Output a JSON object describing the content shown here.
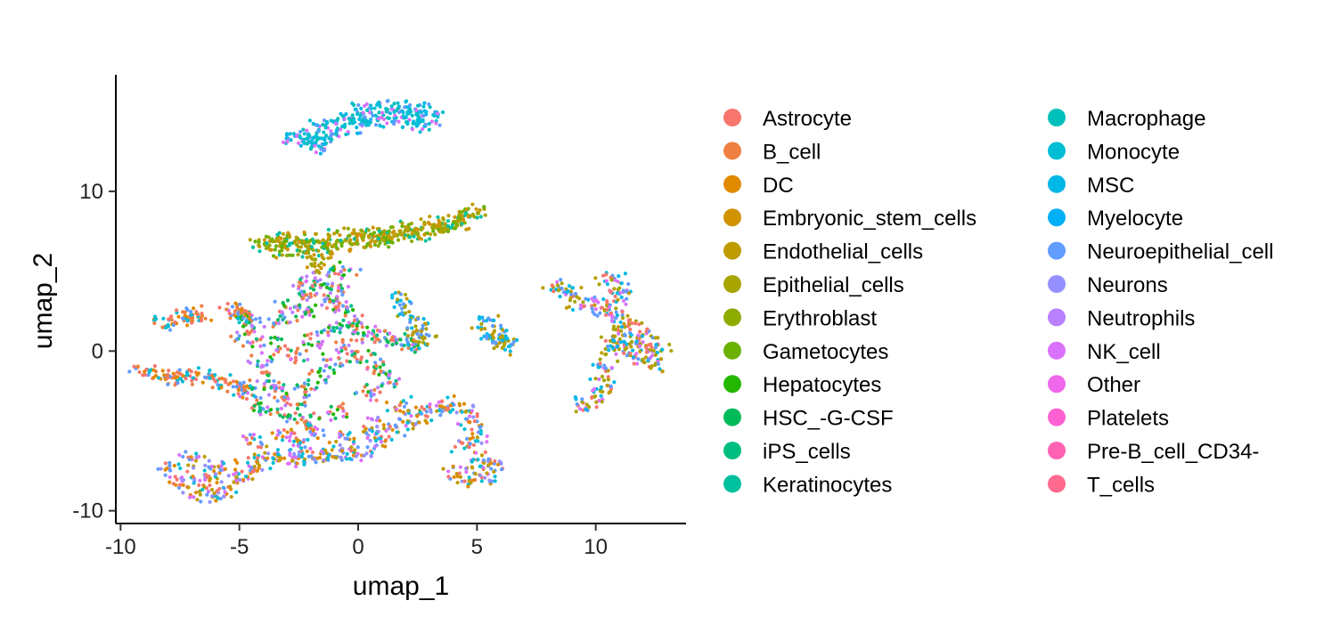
{
  "chart_data": {
    "type": "scatter",
    "title": "",
    "xlabel": "umap_1",
    "ylabel": "umap_2",
    "xlim": [
      -10.2,
      13.8
    ],
    "ylim": [
      -10.8,
      17.3
    ],
    "x_ticks": [
      {
        "value": -10,
        "label": "-10"
      },
      {
        "value": -5,
        "label": "-5"
      },
      {
        "value": 0,
        "label": "0"
      },
      {
        "value": 5,
        "label": "5"
      },
      {
        "value": 10,
        "label": "10"
      }
    ],
    "y_ticks": [
      {
        "value": -10,
        "label": "-10"
      },
      {
        "value": 0,
        "label": "0"
      },
      {
        "value": 10,
        "label": "10"
      }
    ],
    "grid": false,
    "legend": {
      "placement": "right",
      "columns": 2,
      "entries": [
        {
          "name": "Astrocyte",
          "color": "#F8766D"
        },
        {
          "name": "B_cell",
          "color": "#EE8043"
        },
        {
          "name": "DC",
          "color": "#E18A00"
        },
        {
          "name": "Embryonic_stem_cells",
          "color": "#D19300"
        },
        {
          "name": "Endothelial_cells",
          "color": "#BE9C00"
        },
        {
          "name": "Epithelial_cells",
          "color": "#A8A400"
        },
        {
          "name": "Erythroblast",
          "color": "#8EAB00"
        },
        {
          "name": "Gametocytes",
          "color": "#6BB100"
        },
        {
          "name": "Hepatocytes",
          "color": "#24B700"
        },
        {
          "name": "HSC_-G-CSF",
          "color": "#00BA5A"
        },
        {
          "name": "iPS_cells",
          "color": "#00BE81"
        },
        {
          "name": "Keratinocytes",
          "color": "#00C0A0"
        },
        {
          "name": "Macrophage",
          "color": "#00C0BB"
        },
        {
          "name": "Monocyte",
          "color": "#00BED4"
        },
        {
          "name": "MSC",
          "color": "#00B8E7"
        },
        {
          "name": "Myelocyte",
          "color": "#00AFF6"
        },
        {
          "name": "Neuroepithelial_cell",
          "color": "#619CFF"
        },
        {
          "name": "Neurons",
          "color": "#9590FF"
        },
        {
          "name": "Neutrophils",
          "color": "#BA80FF"
        },
        {
          "name": "NK_cell",
          "color": "#DB72FB"
        },
        {
          "name": "Other",
          "color": "#EF67EB"
        },
        {
          "name": "Platelets",
          "color": "#FD61D1"
        },
        {
          "name": "Pre-B_cell_CD34-",
          "color": "#FF62B2"
        },
        {
          "name": "T_cells",
          "color": "#FF6A8F"
        }
      ]
    },
    "clusters": [
      {
        "region": "top-arc",
        "points": [
          [
            -2.8,
            13.3
          ],
          [
            -2.2,
            13.6
          ],
          [
            -1.5,
            14.0
          ],
          [
            -0.8,
            14.4
          ],
          [
            -0.2,
            14.8
          ],
          [
            0.4,
            15.1
          ],
          [
            1.0,
            15.3
          ],
          [
            1.6,
            15.3
          ],
          [
            2.2,
            15.2
          ],
          [
            2.8,
            15.0
          ],
          [
            3.1,
            14.6
          ],
          [
            2.6,
            14.3
          ],
          [
            2.0,
            14.2
          ],
          [
            1.4,
            14.4
          ],
          [
            0.7,
            14.5
          ],
          [
            0.0,
            14.2
          ],
          [
            -0.7,
            13.9
          ],
          [
            -1.4,
            13.5
          ],
          [
            -2.0,
            13.1
          ],
          [
            -1.8,
            12.8
          ]
        ],
        "colors": [
          "#00BED4",
          "#00C0BB",
          "#DB72FB",
          "#00B8E7",
          "#00BED4",
          "#619CFF"
        ]
      },
      {
        "region": "upper-band",
        "points": [
          [
            -4.0,
            6.5
          ],
          [
            -3.5,
            6.8
          ],
          [
            -3.0,
            7.0
          ],
          [
            -2.5,
            6.6
          ],
          [
            -2.0,
            7.0
          ],
          [
            -1.5,
            6.6
          ],
          [
            -1.0,
            7.2
          ],
          [
            -0.5,
            6.8
          ],
          [
            0.0,
            7.3
          ],
          [
            0.5,
            7.0
          ],
          [
            1.0,
            7.4
          ],
          [
            1.5,
            7.2
          ],
          [
            2.0,
            7.6
          ],
          [
            2.5,
            7.4
          ],
          [
            3.0,
            7.9
          ],
          [
            3.5,
            7.8
          ],
          [
            4.0,
            8.2
          ],
          [
            4.5,
            8.4
          ],
          [
            5.0,
            8.8
          ],
          [
            -3.2,
            6.3
          ],
          [
            -2.2,
            6.4
          ],
          [
            -1.2,
            6.5
          ],
          [
            0.2,
            6.8
          ],
          [
            1.2,
            7.0
          ],
          [
            2.2,
            7.3
          ],
          [
            3.2,
            7.6
          ],
          [
            4.2,
            8.0
          ],
          [
            -1.8,
            5.8
          ],
          [
            -1.5,
            5.2
          ]
        ],
        "colors": [
          "#BE9C00",
          "#A8A400",
          "#D19300",
          "#8EAB00",
          "#00C0A0",
          "#6BB100"
        ]
      },
      {
        "region": "central-hub",
        "points": [
          [
            -2.4,
            4.2
          ],
          [
            -2.0,
            3.5
          ],
          [
            -1.6,
            4.5
          ],
          [
            -1.2,
            3.0
          ],
          [
            -0.9,
            3.8
          ],
          [
            -0.6,
            2.6
          ],
          [
            -0.3,
            1.8
          ],
          [
            0.1,
            1.2
          ],
          [
            0.6,
            1.0
          ],
          [
            1.2,
            0.8
          ],
          [
            1.8,
            0.6
          ],
          [
            2.3,
            0.4
          ],
          [
            -3.2,
            1.8
          ],
          [
            -3.6,
            0.5
          ],
          [
            -4.0,
            -0.6
          ],
          [
            -3.8,
            -1.8
          ],
          [
            -3.4,
            -2.6
          ],
          [
            -2.8,
            -3.2
          ],
          [
            -2.2,
            -2.5
          ],
          [
            -1.6,
            -1.5
          ],
          [
            -1.0,
            -0.6
          ],
          [
            -0.4,
            0.3
          ],
          [
            0.2,
            -0.4
          ],
          [
            -2.6,
            -0.2
          ],
          [
            -1.9,
            0.6
          ],
          [
            -1.3,
            1.4
          ],
          [
            -4.6,
            -2.6
          ],
          [
            -4.2,
            -3.6
          ],
          [
            -3.0,
            -4.0
          ],
          [
            -2.0,
            -4.4
          ],
          [
            -0.8,
            -3.8
          ],
          [
            0.4,
            -2.6
          ],
          [
            1.2,
            -1.8
          ],
          [
            -5.0,
            2.3
          ],
          [
            -4.5,
            1.6
          ],
          [
            -0.5,
            5.0
          ],
          [
            -1.9,
            2.4
          ],
          [
            -4.8,
            0.8
          ],
          [
            -3.0,
            2.8
          ],
          [
            0.8,
            -1.0
          ]
        ],
        "colors": [
          "#00BA5A",
          "#24B700",
          "#DB72FB",
          "#619CFF",
          "#EE8043",
          "#00BE81",
          "#F8766D",
          "#BA80FF"
        ]
      },
      {
        "region": "left-spur",
        "points": [
          [
            -9.0,
            -1.2
          ],
          [
            -8.4,
            -1.4
          ],
          [
            -7.8,
            -1.6
          ],
          [
            -7.2,
            -1.7
          ],
          [
            -6.6,
            -1.6
          ],
          [
            -6.0,
            -1.8
          ],
          [
            -5.4,
            -2.1
          ],
          [
            -4.8,
            -2.4
          ],
          [
            -8.0,
            1.7
          ],
          [
            -7.5,
            2.0
          ],
          [
            -7.1,
            2.3
          ],
          [
            -6.8,
            2.4
          ],
          [
            -5.2,
            2.5
          ],
          [
            -4.8,
            2.2
          ]
        ],
        "colors": [
          "#EE8043",
          "#619CFF",
          "#E18A00",
          "#F8766D",
          "#00BED4"
        ]
      },
      {
        "region": "lower-blob",
        "points": [
          [
            -7.8,
            -7.4
          ],
          [
            -7.4,
            -8.2
          ],
          [
            -6.8,
            -8.8
          ],
          [
            -6.2,
            -9.0
          ],
          [
            -5.6,
            -8.6
          ],
          [
            -5.0,
            -8.0
          ],
          [
            -4.6,
            -7.4
          ],
          [
            -4.0,
            -7.0
          ],
          [
            -3.4,
            -6.6
          ],
          [
            -2.8,
            -6.6
          ],
          [
            -2.2,
            -6.8
          ],
          [
            -1.6,
            -6.6
          ],
          [
            -1.0,
            -6.4
          ],
          [
            -0.4,
            -6.6
          ],
          [
            0.2,
            -6.2
          ],
          [
            0.8,
            -5.6
          ],
          [
            1.4,
            -5.0
          ],
          [
            2.0,
            -4.4
          ],
          [
            2.6,
            -4.0
          ],
          [
            3.2,
            -3.6
          ],
          [
            3.8,
            -3.4
          ],
          [
            4.4,
            -3.6
          ],
          [
            4.8,
            -4.4
          ],
          [
            5.0,
            -5.2
          ],
          [
            4.6,
            -6.0
          ],
          [
            5.2,
            -6.8
          ],
          [
            5.8,
            -7.2
          ],
          [
            5.4,
            -7.8
          ],
          [
            4.8,
            -8.0
          ],
          [
            4.2,
            -7.6
          ],
          [
            -7.0,
            -6.8
          ],
          [
            -6.4,
            -7.8
          ],
          [
            -5.8,
            -7.2
          ],
          [
            -3.0,
            -5.2
          ],
          [
            -1.8,
            -5.0
          ],
          [
            -0.6,
            -5.4
          ],
          [
            0.6,
            -4.6
          ],
          [
            1.8,
            -3.4
          ],
          [
            -4.2,
            -5.6
          ],
          [
            -2.4,
            -5.8
          ]
        ],
        "colors": [
          "#619CFF",
          "#E18A00",
          "#9590FF",
          "#DB72FB",
          "#F8766D",
          "#00BED4",
          "#BE9C00"
        ]
      },
      {
        "region": "right-blob",
        "points": [
          [
            9.4,
            3.0
          ],
          [
            10.0,
            2.8
          ],
          [
            10.5,
            2.5
          ],
          [
            11.0,
            2.0
          ],
          [
            11.4,
            1.5
          ],
          [
            11.8,
            1.0
          ],
          [
            12.2,
            0.5
          ],
          [
            12.6,
            0.0
          ],
          [
            12.4,
            -0.8
          ],
          [
            12.0,
            -0.4
          ],
          [
            11.6,
            0.2
          ],
          [
            11.2,
            0.6
          ],
          [
            10.8,
            1.0
          ],
          [
            10.6,
            0.2
          ],
          [
            10.4,
            -1.0
          ],
          [
            10.3,
            -2.0
          ],
          [
            10.0,
            -2.8
          ],
          [
            9.6,
            -3.4
          ],
          [
            8.4,
            4.0
          ],
          [
            8.8,
            3.6
          ],
          [
            10.6,
            4.6
          ],
          [
            10.9,
            4.0
          ],
          [
            11.0,
            3.4
          ]
        ],
        "colors": [
          "#BE9C00",
          "#A8A400",
          "#00B8E7",
          "#F8766D",
          "#619CFF",
          "#DB72FB"
        ]
      },
      {
        "region": "small-islands",
        "points": [
          [
            1.8,
            3.2
          ],
          [
            2.1,
            2.4
          ],
          [
            2.4,
            1.6
          ],
          [
            2.7,
            1.0
          ],
          [
            2.6,
            0.6
          ],
          [
            5.4,
            1.8
          ],
          [
            5.6,
            1.2
          ],
          [
            5.8,
            0.9
          ],
          [
            6.0,
            0.6
          ],
          [
            6.2,
            0.3
          ]
        ],
        "colors": [
          "#00B8E7",
          "#619CFF",
          "#BE9C00",
          "#A8A400"
        ]
      }
    ]
  }
}
